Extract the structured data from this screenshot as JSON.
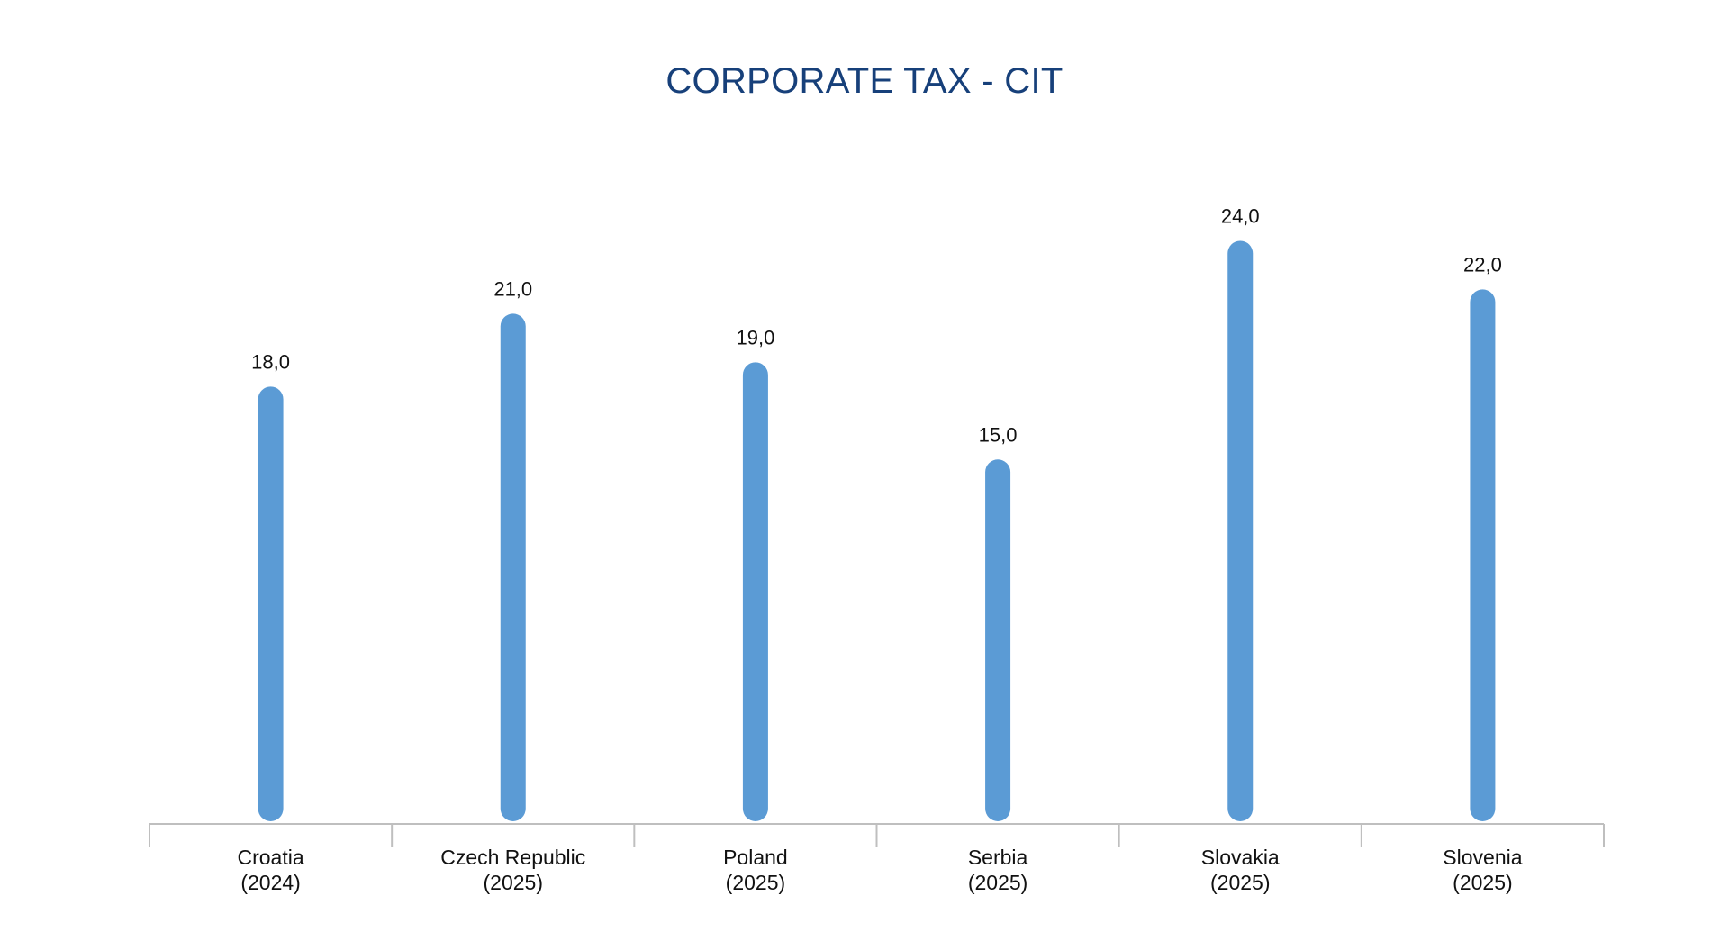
{
  "chart_data": {
    "type": "bar",
    "title": "CORPORATE TAX - CIT",
    "categories": [
      [
        "Croatia",
        "(2024)"
      ],
      [
        "Czech Republic",
        "(2025)"
      ],
      [
        "Poland",
        "(2025)"
      ],
      [
        "Serbia",
        "(2025)"
      ],
      [
        "Slovakia",
        "(2025)"
      ],
      [
        "Slovenia",
        "(2025)"
      ]
    ],
    "values": [
      18.0,
      21.0,
      19.0,
      15.0,
      24.0,
      22.0
    ],
    "value_labels": [
      "18,0",
      "21,0",
      "19,0",
      "15,0",
      "24,0",
      "22,0"
    ],
    "xlabel": "",
    "ylabel": "",
    "ylim": [
      0,
      26.5
    ],
    "grid": false,
    "legend": "none",
    "colors": {
      "bar": "#5b9bd5",
      "axis": "#bfbfbf",
      "title": "#17407a"
    }
  }
}
